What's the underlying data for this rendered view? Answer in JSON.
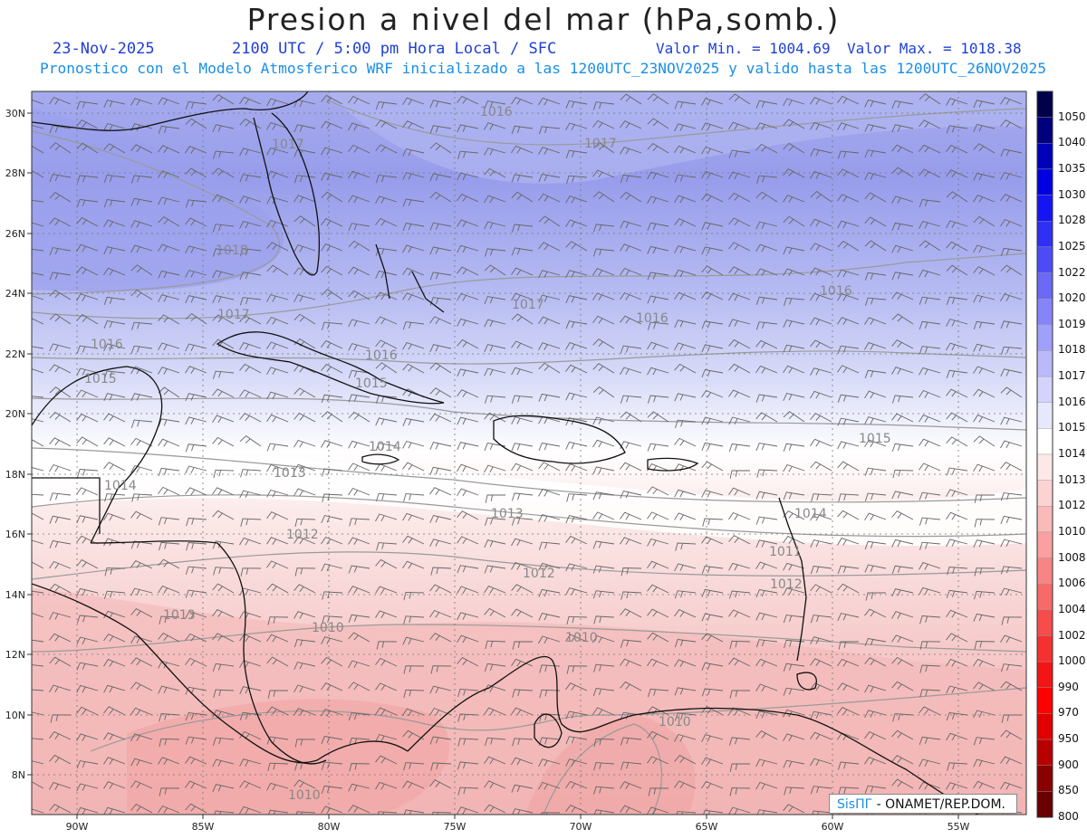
{
  "header": {
    "title": "Presion a nivel del mar (hPa,somb.)",
    "date": "23-Nov-2025",
    "time_info": "2100 UTC / 5:00 pm Hora Local / SFC",
    "min_value": "Valor Min. = 1004.69",
    "max_value": "Valor Max. = 1018.38",
    "forecast_info": "Pronostico con el Modelo Atmosferico WRF inicializado a las 1200UTC_23NOV2025 y valido hasta las  1200UTC_26NOV2025"
  },
  "axes": {
    "lat_labels": [
      "30N",
      "28N",
      "26N",
      "24N",
      "22N",
      "20N",
      "18N",
      "16N",
      "14N",
      "12N",
      "10N",
      "8N"
    ],
    "lon_labels": [
      "90W",
      "85W",
      "80W",
      "75W",
      "70W",
      "65W",
      "60W",
      "55W"
    ]
  },
  "colorbar": {
    "labels": [
      "1050",
      "1040",
      "1035",
      "1030",
      "1028",
      "1025",
      "1022",
      "1020",
      "1019",
      "1018",
      "1017",
      "1016",
      "1015",
      "1014",
      "1013",
      "1012",
      "1010",
      "1008",
      "1006",
      "1004",
      "1002",
      "1000",
      "990",
      "970",
      "950",
      "900",
      "850",
      "800"
    ]
  },
  "contour_labels": [
    "1016",
    "1017",
    "1017",
    "1018",
    "1017",
    "1017",
    "1016",
    "1016",
    "1016",
    "1015",
    "1015",
    "1016",
    "1015",
    "1014",
    "1013",
    "1014",
    "1013",
    "1014",
    "1012",
    "1012",
    "1011",
    "1012",
    "1013",
    "1010",
    "1010",
    "1010",
    "1010"
  ],
  "colors": {
    "high": "#8e95ea",
    "mid": "#d6daf8",
    "neutral": "#ffffff",
    "low": "#f2a6a6",
    "colorbar_top": "#00004a",
    "colorbar_bottom": "#6a0000"
  },
  "credit": {
    "brand": "SisПГ",
    "text": " - ONAMET/REP.DOM."
  }
}
